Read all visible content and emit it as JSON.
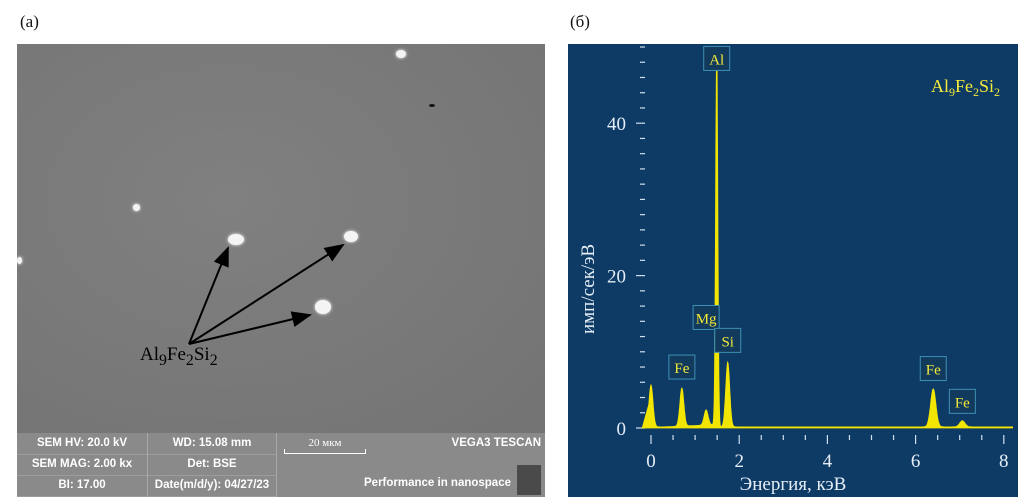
{
  "panel_a": {
    "label": "(a)",
    "annotation": {
      "base": "Al",
      "s1": "9",
      "m": "Fe",
      "s2": "2",
      "e": "Si",
      "s3": "2"
    },
    "info": {
      "hv": "SEM HV: 20.0 kV",
      "wd": "WD: 15.08 mm",
      "mag": "SEM MAG: 2.00 kx",
      "det": "Det: BSE",
      "bi": "BI: 17.00",
      "date": "Date(m/d/y): 04/27/23",
      "scale": "20 мкм",
      "brand": "VEGA3 TESCAN",
      "slogan": "Performance in nanospace"
    }
  },
  "panel_b": {
    "label": "(б)"
  },
  "chart_data": {
    "type": "line",
    "title": "Al9Fe2Si2",
    "xlabel": "Энергия, кэВ",
    "ylabel": "имп/сек/эВ",
    "xlim": [
      -0.2,
      8.2
    ],
    "ylim": [
      0,
      50
    ],
    "xticks": [
      0,
      2,
      4,
      6,
      8
    ],
    "yticks": [
      0,
      20,
      40
    ],
    "peaks": [
      {
        "element": "",
        "energy": 0.0,
        "height": 5.5
      },
      {
        "element": "Fe",
        "energy": 0.7,
        "height": 5
      },
      {
        "element": "Mg",
        "energy": 1.25,
        "height": 2
      },
      {
        "element": "Al",
        "energy": 1.49,
        "height": 50
      },
      {
        "element": "Si",
        "energy": 1.74,
        "height": 8.5
      },
      {
        "element": "Fe",
        "energy": 6.4,
        "height": 5
      },
      {
        "element": "Fe",
        "energy": 7.06,
        "height": 0.8
      }
    ],
    "labels": [
      {
        "text": "Fe",
        "energy": 0.7,
        "y": 8
      },
      {
        "text": "Mg",
        "energy": 1.25,
        "y": 14.5
      },
      {
        "text": "Al",
        "energy": 1.49,
        "y": 48.5
      },
      {
        "text": "Si",
        "energy": 1.74,
        "y": 11.5
      },
      {
        "text": "Fe",
        "energy": 6.4,
        "y": 7.8
      },
      {
        "text": "Fe",
        "energy": 7.06,
        "y": 3.5
      }
    ],
    "colors": {
      "bg": "#0e3a66",
      "fill": "#f2e600",
      "text": "#f4ea3a"
    }
  }
}
